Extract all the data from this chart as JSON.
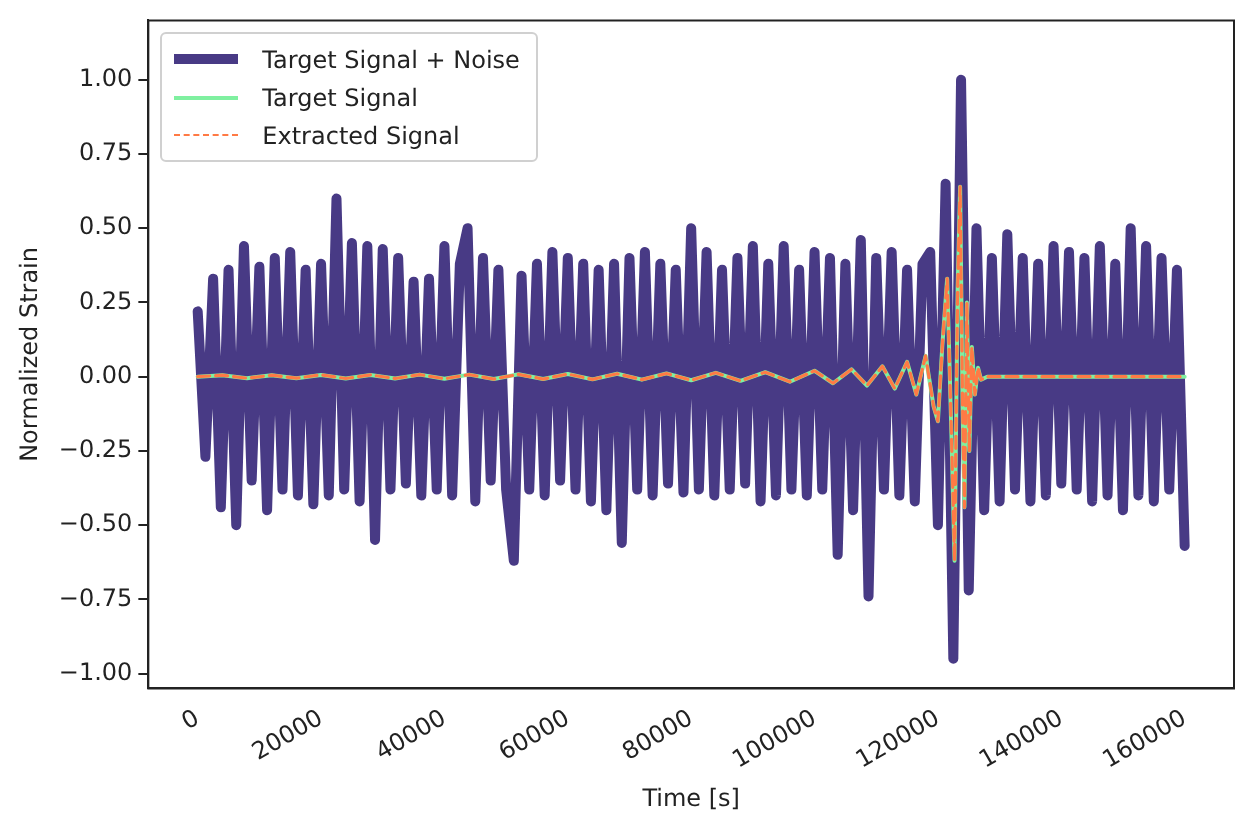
{
  "chart_data": {
    "type": "line",
    "xlabel": "Time [s]",
    "ylabel": "Normalized Strain",
    "legend": "top left",
    "xlim": [
      -8000,
      168000
    ],
    "ylim": [
      -1.05,
      1.2
    ],
    "xticks": [
      0,
      20000,
      40000,
      60000,
      80000,
      100000,
      120000,
      140000,
      160000
    ],
    "yticks": [
      {
        "value": -1,
        "label": "−1.00"
      },
      {
        "value": -0.75,
        "label": "−0.75"
      },
      {
        "value": -0.5,
        "label": "−0.50"
      },
      {
        "value": -0.25,
        "label": "−0.25"
      },
      {
        "value": 0,
        "label": "0.00"
      },
      {
        "value": 0.25,
        "label": "0.25"
      },
      {
        "value": 0.5,
        "label": "0.50"
      },
      {
        "value": 0.75,
        "label": "0.75"
      },
      {
        "value": 1,
        "label": "1.00"
      }
    ],
    "series": [
      {
        "name": "Target Signal + Noise",
        "color": "#483a85",
        "line_style": "solid",
        "x": [
          0,
          1250,
          2500,
          3750,
          5000,
          6250,
          7500,
          8750,
          10000,
          11250,
          12500,
          13750,
          15000,
          16250,
          17500,
          18750,
          20000,
          21250,
          22500,
          23750,
          25000,
          26250,
          27500,
          28750,
          30000,
          31250,
          32500,
          33750,
          35000,
          36250,
          37500,
          38750,
          40000,
          41250,
          42500,
          43750,
          45000,
          46250,
          47500,
          48750,
          50000,
          51250,
          52500,
          53750,
          55000,
          56250,
          57500,
          58750,
          60000,
          61250,
          62500,
          63750,
          65000,
          66250,
          67500,
          68750,
          70000,
          71250,
          72500,
          73750,
          75000,
          76250,
          77500,
          78750,
          80000,
          81250,
          82500,
          83750,
          85000,
          86250,
          87500,
          88750,
          90000,
          91250,
          92500,
          93750,
          95000,
          96250,
          97500,
          98750,
          100000,
          101250,
          102500,
          103750,
          105000,
          106250,
          107500,
          108750,
          110000,
          111250,
          112500,
          113750,
          115000,
          116250,
          117500,
          118750,
          120000,
          121250,
          122500,
          123750,
          125000,
          126250,
          127500,
          128750,
          130000,
          131250,
          132500,
          133750,
          135000,
          136250,
          137500,
          138750,
          140000,
          141250,
          142500,
          143750,
          145000,
          146250,
          147500,
          148750,
          150000,
          151250,
          152500,
          153750,
          155000,
          156250,
          157500,
          158750,
          160000
        ],
        "values": [
          0.22,
          -0.27,
          0.33,
          -0.44,
          0.36,
          -0.5,
          0.44,
          -0.35,
          0.37,
          -0.45,
          0.4,
          -0.38,
          0.42,
          -0.4,
          0.36,
          -0.43,
          0.38,
          -0.4,
          0.6,
          -0.38,
          0.45,
          -0.42,
          0.44,
          -0.55,
          0.43,
          -0.38,
          0.4,
          -0.36,
          0.32,
          -0.4,
          0.33,
          -0.38,
          0.44,
          -0.4,
          0.38,
          0.5,
          -0.42,
          0.4,
          -0.35,
          0.36,
          -0.38,
          -0.62,
          0.34,
          -0.38,
          0.38,
          -0.4,
          0.42,
          -0.35,
          0.4,
          -0.38,
          0.38,
          -0.42,
          0.36,
          -0.45,
          0.38,
          -0.56,
          0.4,
          -0.38,
          0.42,
          -0.4,
          0.38,
          -0.36,
          0.36,
          -0.39,
          0.5,
          -0.38,
          0.42,
          -0.4,
          0.36,
          -0.38,
          0.4,
          -0.36,
          0.44,
          -0.42,
          0.38,
          -0.4,
          0.44,
          -0.38,
          0.36,
          -0.4,
          0.42,
          -0.38,
          0.4,
          -0.6,
          0.38,
          -0.45,
          0.46,
          -0.74,
          0.4,
          -0.38,
          0.42,
          -0.4,
          0.36,
          -0.42,
          0.38,
          0.42,
          -0.5,
          0.65,
          -0.95,
          1.0,
          -0.72,
          0.5,
          -0.45,
          0.4,
          -0.42,
          0.48,
          -0.38,
          0.4,
          -0.42,
          0.38,
          -0.4,
          0.44,
          -0.36,
          0.42,
          -0.38,
          0.4,
          -0.42,
          0.44,
          -0.4,
          0.38,
          -0.45,
          0.5,
          -0.4,
          0.44,
          -0.42,
          0.4,
          -0.38,
          0.36,
          -0.57
        ]
      },
      {
        "name": "Target Signal",
        "color": "#7ff0a0",
        "line_style": "solid",
        "x": [
          0,
          4000,
          8000,
          12000,
          16000,
          20000,
          24000,
          28000,
          32000,
          36000,
          40000,
          44000,
          48000,
          52000,
          56000,
          60000,
          64000,
          68000,
          72000,
          76000,
          80000,
          84000,
          88000,
          92000,
          96000,
          100000,
          103000,
          106000,
          108500,
          111000,
          113000,
          115000,
          116500,
          118000,
          119300,
          120000,
          120700,
          121500,
          122200,
          122700,
          123200,
          123600,
          124000,
          124300,
          124700,
          125100,
          125500,
          126000,
          126500,
          127000,
          128000,
          140000,
          160000
        ],
        "values": [
          0,
          0.005,
          -0.005,
          0.005,
          -0.005,
          0.006,
          -0.006,
          0.006,
          -0.006,
          0.007,
          -0.007,
          0.007,
          -0.008,
          0.008,
          -0.008,
          0.009,
          -0.009,
          0.01,
          -0.01,
          0.011,
          -0.012,
          0.013,
          -0.014,
          0.015,
          -0.017,
          0.02,
          -0.022,
          0.025,
          -0.03,
          0.035,
          -0.04,
          0.05,
          -0.06,
          0.07,
          -0.1,
          -0.15,
          0.1,
          0.33,
          -0.2,
          -0.62,
          0.3,
          0.64,
          -0.1,
          -0.44,
          0.25,
          -0.25,
          0.1,
          -0.06,
          0.03,
          -0.01,
          0,
          0,
          0
        ]
      },
      {
        "name": "Extracted Signal",
        "color": "#ff7a45",
        "line_style": "dashed",
        "x": [
          0,
          4000,
          8000,
          12000,
          16000,
          20000,
          24000,
          28000,
          32000,
          36000,
          40000,
          44000,
          48000,
          52000,
          56000,
          60000,
          64000,
          68000,
          72000,
          76000,
          80000,
          84000,
          88000,
          92000,
          96000,
          100000,
          103000,
          106000,
          108500,
          111000,
          113000,
          115000,
          116500,
          118000,
          119300,
          120000,
          120700,
          121500,
          122200,
          122700,
          123200,
          123600,
          124000,
          124300,
          124700,
          125100,
          125500,
          126000,
          126500,
          127000,
          128000,
          140000,
          160000
        ],
        "values": [
          0,
          0.005,
          -0.005,
          0.005,
          -0.005,
          0.006,
          -0.006,
          0.006,
          -0.006,
          0.007,
          -0.007,
          0.007,
          -0.008,
          0.008,
          -0.008,
          0.009,
          -0.009,
          0.01,
          -0.01,
          0.011,
          -0.012,
          0.013,
          -0.014,
          0.015,
          -0.017,
          0.02,
          -0.022,
          0.025,
          -0.03,
          0.035,
          -0.04,
          0.05,
          -0.06,
          0.07,
          -0.1,
          -0.15,
          0.1,
          0.33,
          -0.2,
          -0.62,
          0.3,
          0.64,
          -0.1,
          -0.44,
          0.25,
          -0.25,
          0.1,
          -0.06,
          0.03,
          -0.01,
          0,
          0,
          0
        ]
      }
    ]
  }
}
